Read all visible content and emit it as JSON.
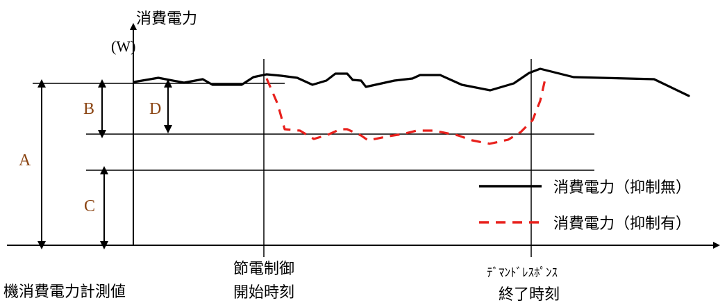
{
  "axis": {
    "y_label_line1": "消費電力",
    "y_label_line2": "(W)"
  },
  "markers": {
    "start_line1": "節電制御",
    "start_line2": "開始時刻",
    "end_line1": "ﾃﾞﾏﾝﾄﾞﾚｽﾎﾟﾝｽ",
    "end_line2": "終了時刻"
  },
  "caption": "機消費電力計測値",
  "levels": {
    "a": "A",
    "b": "B",
    "c": "C",
    "d": "D"
  },
  "legend": {
    "no_control": "消費電力（抑制無）",
    "with_control": "消費電力（抑制有）"
  },
  "colors": {
    "with_control": "#e8201c",
    "no_control": "#000000",
    "level_letters": "#8b4513"
  }
}
